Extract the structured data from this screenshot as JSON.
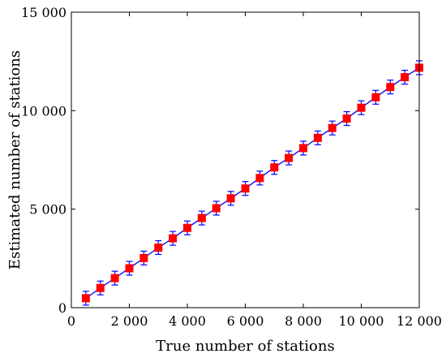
{
  "chart_data": {
    "type": "line",
    "xlabel": "True number of stations",
    "ylabel": "Estimated number of stations",
    "xlim": [
      0,
      12000
    ],
    "ylim": [
      0,
      15000
    ],
    "x_ticks": [
      0,
      2000,
      4000,
      6000,
      8000,
      10000,
      12000
    ],
    "x_tick_labels": [
      "0",
      "2 000",
      "4 000",
      "6 000",
      "8 000",
      "10 000",
      "12 000"
    ],
    "y_ticks": [
      0,
      5000,
      10000,
      15000
    ],
    "y_tick_labels": [
      "0",
      "5 000",
      "10 000",
      "15 000"
    ],
    "grid": false,
    "legend": "none",
    "series": [
      {
        "line_color": "#0000ff",
        "marker_color": "#ff0000",
        "errorbar_color": "#0000ff",
        "marker": "square",
        "x": [
          500,
          1000,
          1500,
          2000,
          2500,
          3000,
          3500,
          4000,
          4500,
          5000,
          5500,
          6000,
          6500,
          7000,
          7500,
          8000,
          8500,
          9000,
          9500,
          10000,
          10500,
          11000,
          11500,
          12000
        ],
        "y": [
          480,
          1000,
          1500,
          2000,
          2520,
          3050,
          3520,
          4050,
          4550,
          5050,
          5550,
          6050,
          6580,
          7120,
          7600,
          8100,
          8620,
          9120,
          9600,
          10150,
          10680,
          11200,
          11700,
          12180
        ],
        "err": [
          350,
          350,
          350,
          350,
          350,
          350,
          350,
          350,
          350,
          350,
          350,
          350,
          350,
          350,
          350,
          350,
          350,
          350,
          350,
          350,
          350,
          350,
          350,
          350
        ]
      }
    ]
  }
}
